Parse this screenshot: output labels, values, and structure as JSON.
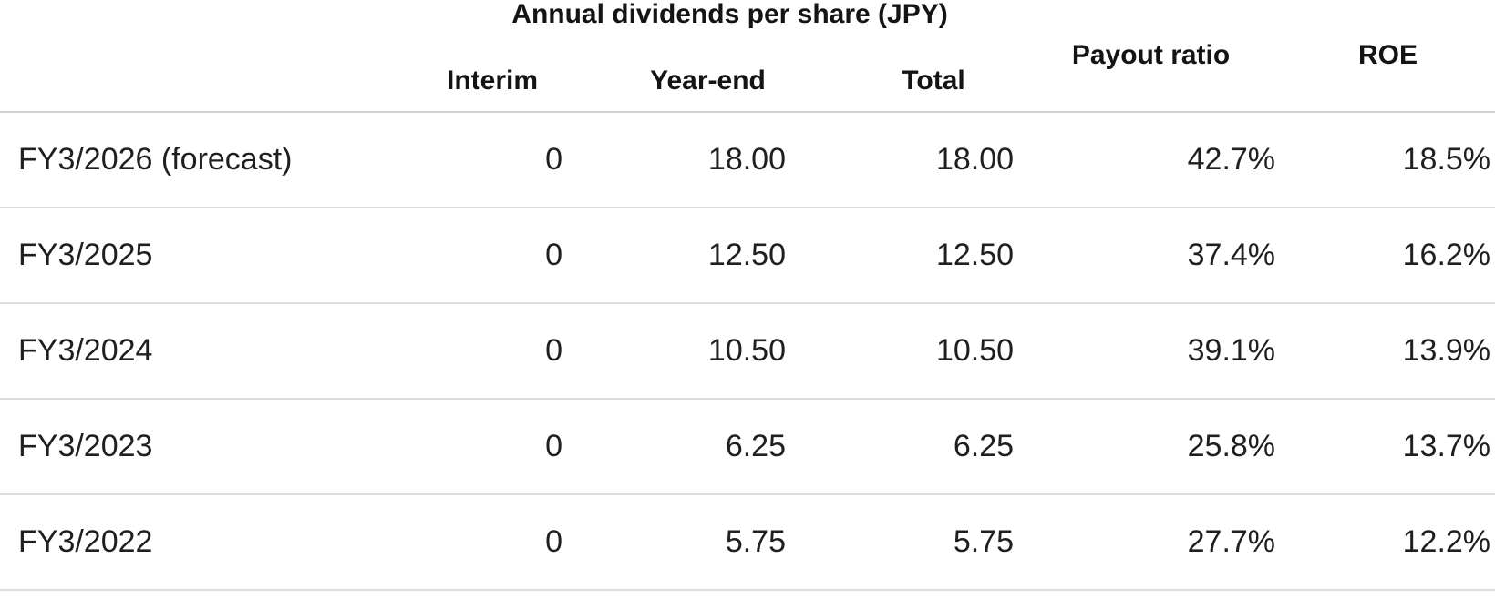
{
  "colors": {
    "background": "#ffffff",
    "text_primary": "#1f1f1f",
    "header_text": "#141414",
    "divider": "#d6d6d6"
  },
  "chart_data": {
    "type": "table",
    "title": "Annual dividends per share (JPY)",
    "column_group": {
      "label": "Annual dividends per share (JPY)",
      "spans": [
        "Interim",
        "Year-end",
        "Total"
      ]
    },
    "columns": {
      "interim": "Interim",
      "year_end": "Year-end",
      "total": "Total",
      "payout_ratio": "Payout ratio",
      "roe": "ROE"
    },
    "rows": [
      {
        "label": "FY3/2026 (forecast)",
        "interim": "0",
        "year_end": "18.00",
        "total": "18.00",
        "payout_ratio": "42.7%",
        "roe": "18.5%"
      },
      {
        "label": "FY3/2025",
        "interim": "0",
        "year_end": "12.50",
        "total": "12.50",
        "payout_ratio": "37.4%",
        "roe": "16.2%"
      },
      {
        "label": "FY3/2024",
        "interim": "0",
        "year_end": "10.50",
        "total": "10.50",
        "payout_ratio": "39.1%",
        "roe": "13.9%"
      },
      {
        "label": "FY3/2023",
        "interim": "0",
        "year_end": "6.25",
        "total": "6.25",
        "payout_ratio": "25.8%",
        "roe": "13.7%"
      },
      {
        "label": "FY3/2022",
        "interim": "0",
        "year_end": "5.75",
        "total": "5.75",
        "payout_ratio": "27.7%",
        "roe": "12.2%"
      }
    ]
  }
}
